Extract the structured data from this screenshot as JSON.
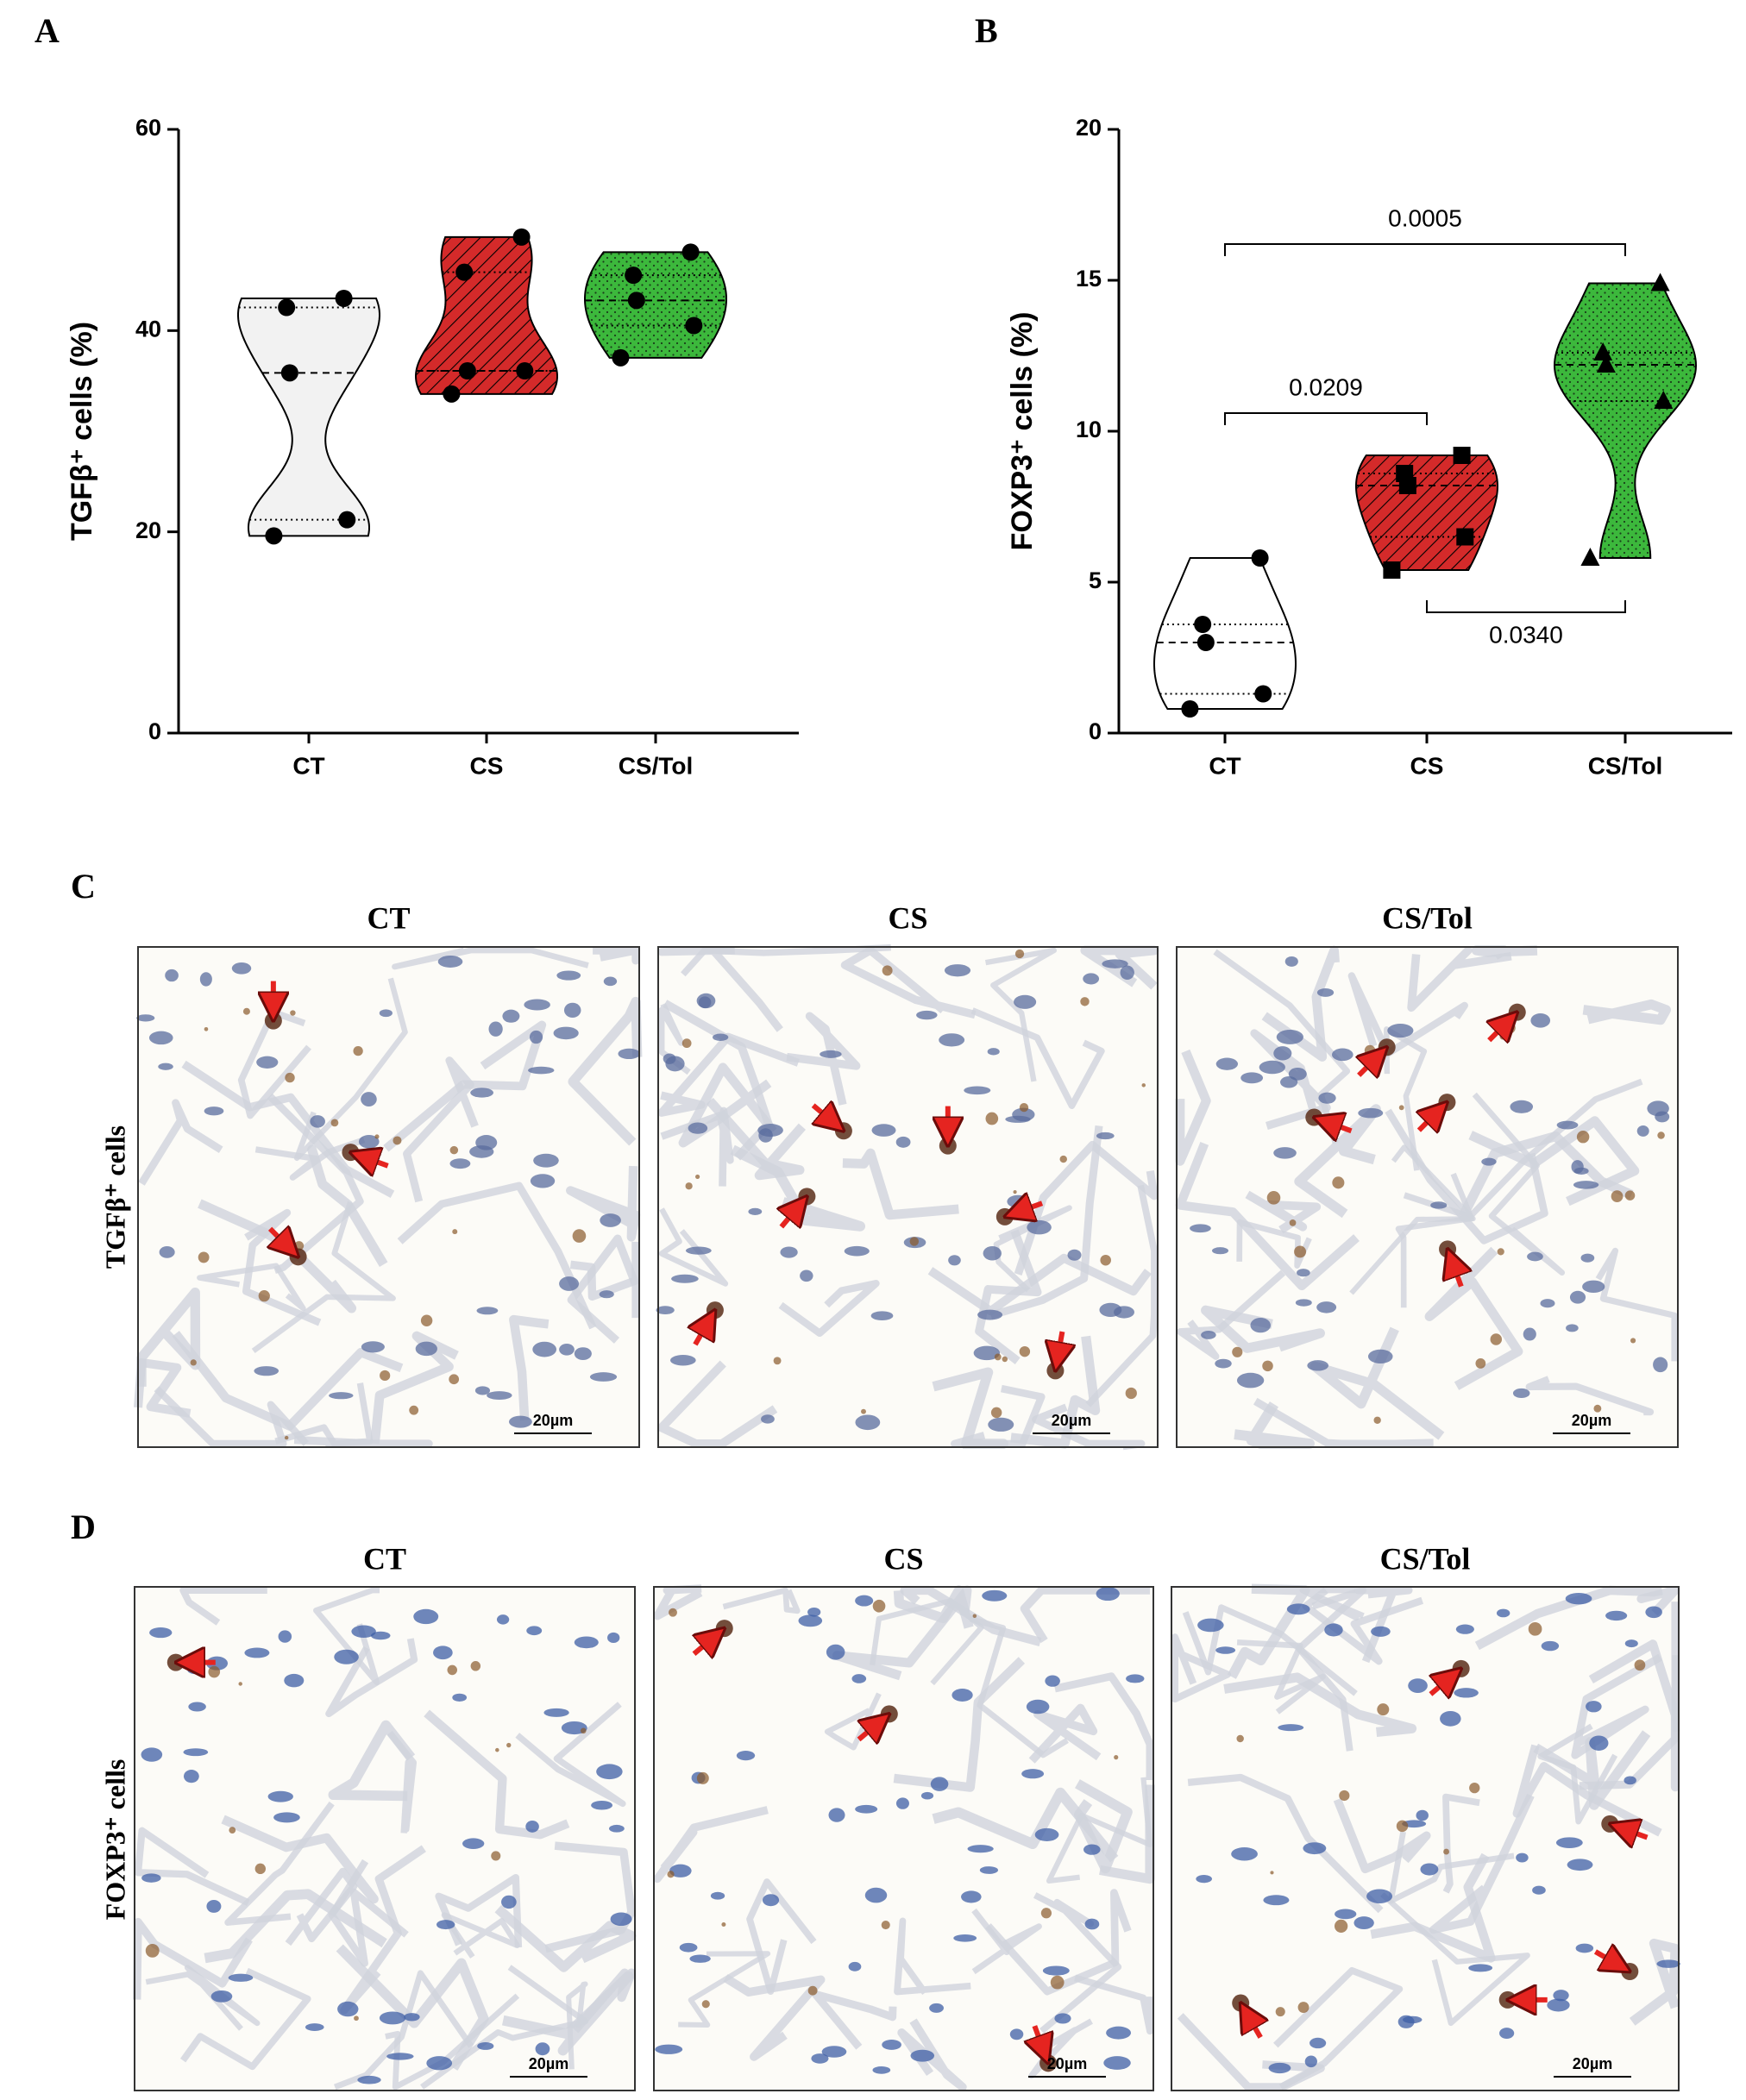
{
  "chart_data": [
    {
      "type": "violin",
      "panel_label": "A",
      "y_label": "TGFβ⁺ cells (%)",
      "categories": [
        "CT",
        "CS",
        "CS/Tol"
      ],
      "values": [
        [
          43.2,
          42.3,
          35.8,
          21.2,
          19.6
        ],
        [
          49.3,
          45.8,
          36.0,
          36.0,
          33.7
        ],
        [
          47.8,
          45.5,
          43.0,
          40.5,
          37.3
        ]
      ],
      "colors": [
        "#f2f2f2",
        "#d42a2a",
        "#3cb83c"
      ],
      "patterns": [
        "none",
        "hatch",
        "dots"
      ],
      "marker": "circle",
      "ylim": [
        0,
        60
      ],
      "yticks": [
        0,
        20,
        40,
        60
      ]
    },
    {
      "type": "violin",
      "panel_label": "B",
      "y_label": "FOXP3⁺ cells (%)",
      "categories": [
        "CT",
        "CS",
        "CS/Tol"
      ],
      "values": [
        [
          5.8,
          3.6,
          3.0,
          1.3,
          0.8
        ],
        [
          9.2,
          8.6,
          8.2,
          6.5,
          5.4
        ],
        [
          14.9,
          12.6,
          12.2,
          11.0,
          5.8
        ]
      ],
      "colors": [
        "#ffffff",
        "#d42a2a",
        "#3cb83c"
      ],
      "patterns": [
        "none",
        "hatch",
        "dots"
      ],
      "markers": [
        "circle",
        "square",
        "triangle"
      ],
      "ylim": [
        0,
        20
      ],
      "yticks": [
        0,
        5,
        10,
        15,
        20
      ],
      "comparisons": [
        {
          "groups": [
            0,
            2
          ],
          "y": 16.2,
          "label": "0.0005"
        },
        {
          "groups": [
            0,
            1
          ],
          "y": 10.6,
          "label": "0.0209"
        },
        {
          "groups": [
            1,
            2
          ],
          "y": 4.0,
          "label": "0.0340"
        }
      ]
    }
  ],
  "micrographs": [
    {
      "panel_label": "C",
      "row_label": "TGFβ⁺ cells",
      "columns": [
        "CT",
        "CS",
        "CS/Tol"
      ],
      "scale_bar": "20µm"
    },
    {
      "panel_label": "D",
      "row_label": "FOXP3⁺ cells",
      "columns": [
        "CT",
        "CS",
        "CS/Tol"
      ],
      "scale_bar": "20µm"
    }
  ]
}
